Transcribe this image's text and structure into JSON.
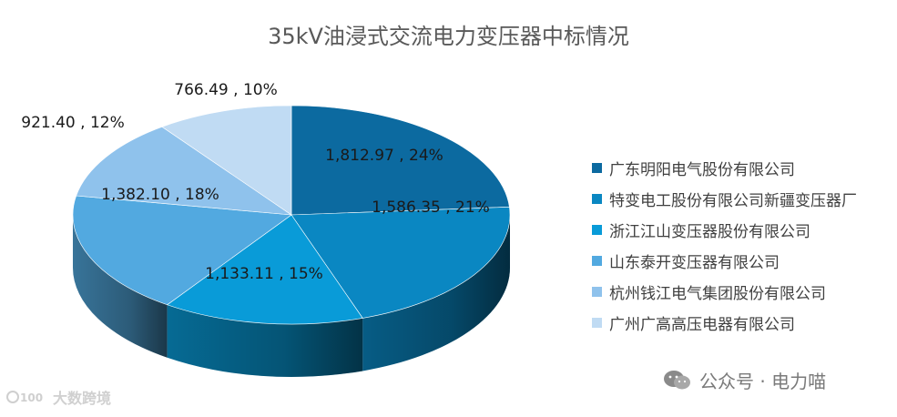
{
  "chart_data": {
    "type": "pie",
    "title": "35kV油浸式交流电力变压器中标情况",
    "categories": [
      "广东明阳电气股份有限公司",
      "特变电工股份有限公司新疆变压器厂",
      "浙江江山变压器股份有限公司",
      "山东泰开变压器有限公司",
      "杭州钱江电气集团股份有限公司",
      "广州广高高压电器有限公司"
    ],
    "values": [
      1812.97,
      1586.35,
      1133.11,
      1382.1,
      921.4,
      766.49
    ],
    "data_labels": [
      "1,812.97 , 24%",
      "1,586.35 , 21%",
      "1,133.11 , 15%",
      "1,382.10 , 18%",
      "921.40 , 12%",
      "766.49 , 10%"
    ],
    "colors": [
      "#0c6aa0",
      "#0a87c2",
      "#099bd8",
      "#52a9e0",
      "#8fc2ec",
      "#c0dbf3"
    ],
    "legend_position": "right",
    "three_d": true
  },
  "watermarks": {
    "left": "大数跨境",
    "right": "公众号 · 电力喵"
  }
}
